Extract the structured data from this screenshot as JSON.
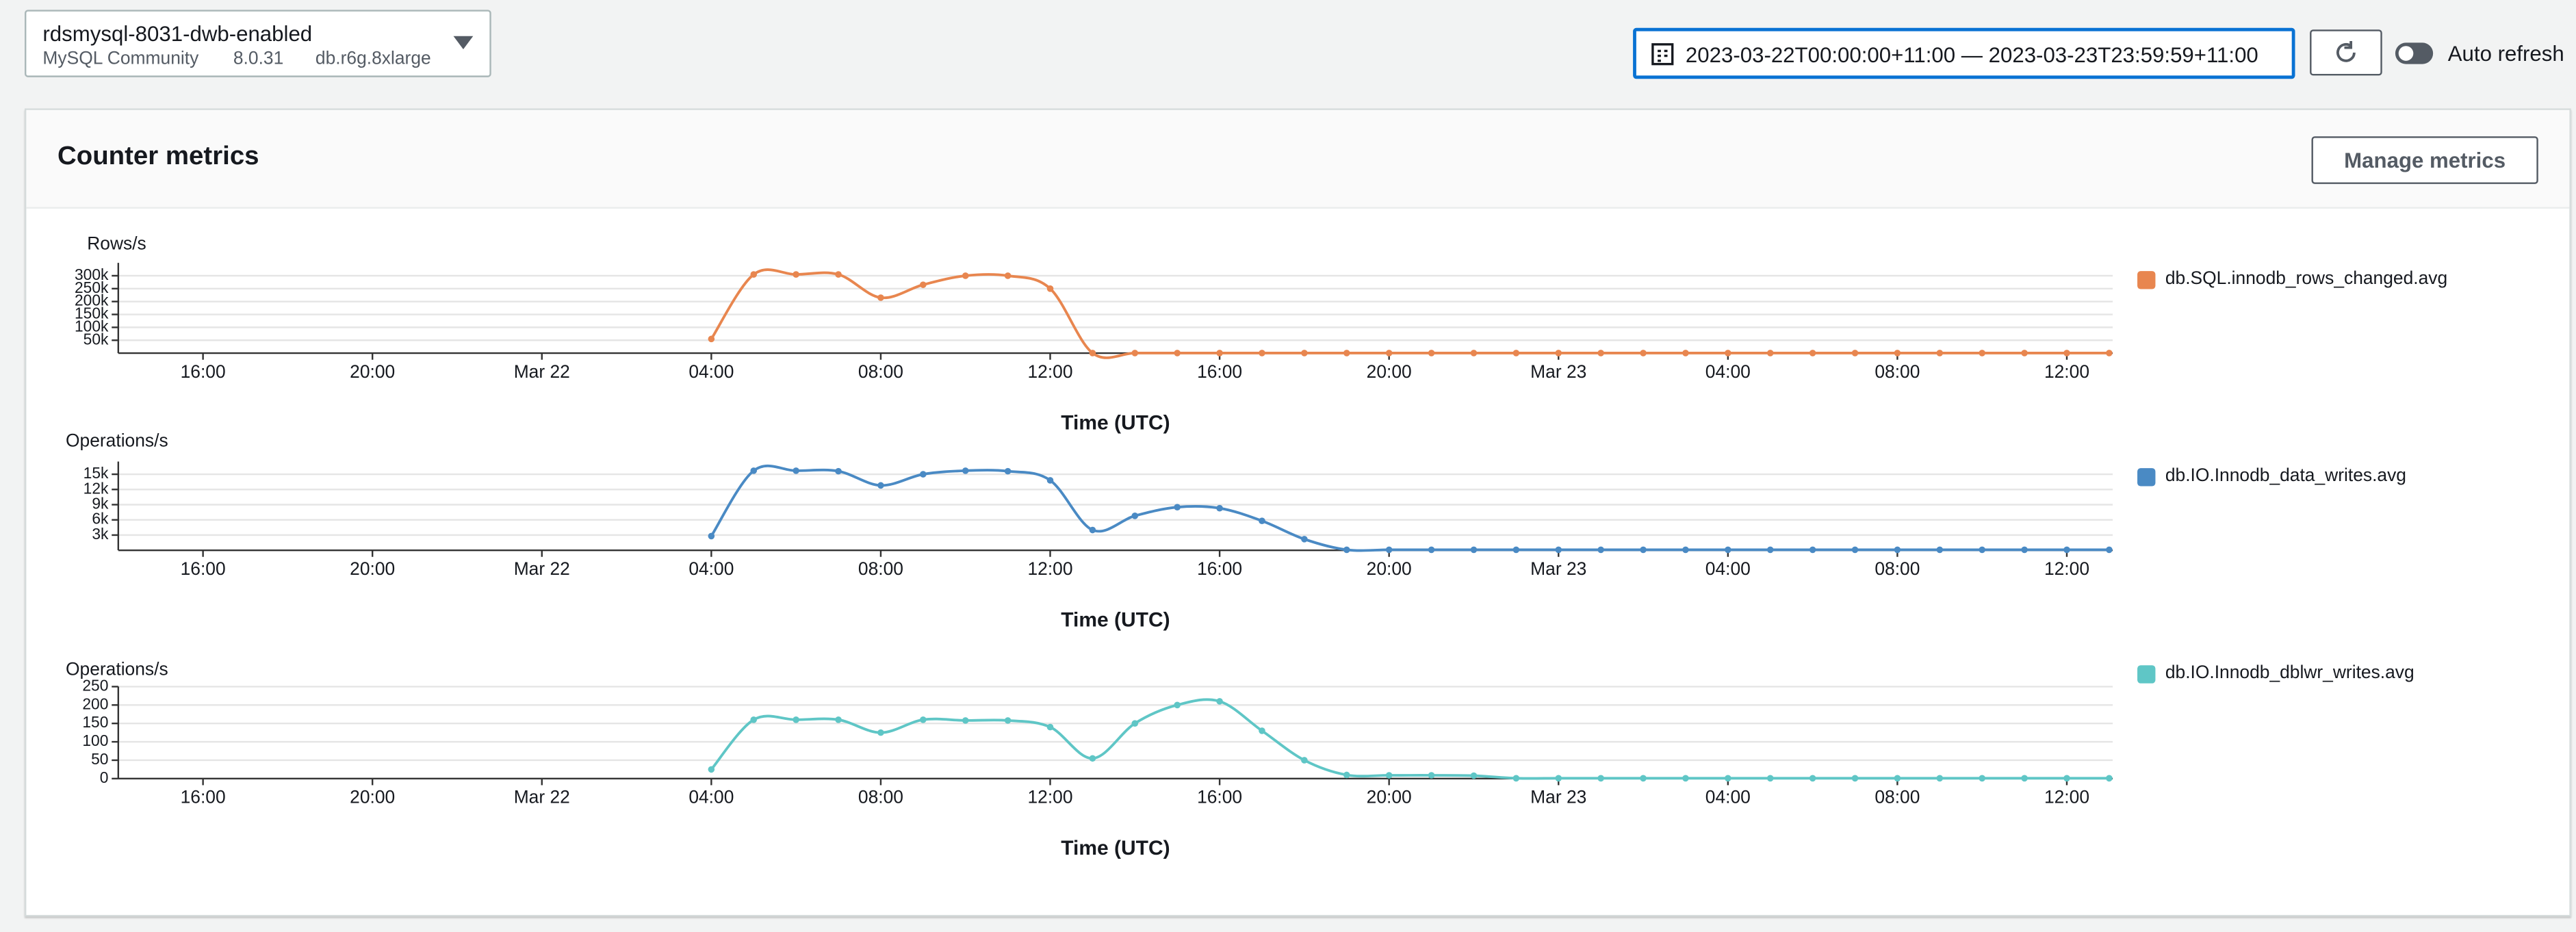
{
  "header": {
    "instance": "rdsmysql-8031-dwb-enabled",
    "engine": "MySQL Community",
    "version": "8.0.31",
    "instance_class": "db.r6g.8xlarge",
    "time_range": "2023-03-22T00:00:00+11:00 — 2023-03-23T23:59:59+11:00",
    "auto_refresh": "Auto refresh"
  },
  "panel": {
    "title": "Counter metrics",
    "button": "Manage metrics"
  },
  "chart_data": [
    {
      "type": "line",
      "y_label": "Rows/s",
      "x_label": "Time (UTC)",
      "x": [
        "Mar 22 04:00",
        "Mar 22 05:00",
        "Mar 22 06:00",
        "Mar 22 07:00",
        "Mar 22 08:00",
        "Mar 22 09:00",
        "Mar 22 10:00",
        "Mar 22 11:00",
        "Mar 22 12:00",
        "Mar 22 13:00",
        "Mar 22 14:00",
        "Mar 22 15:00",
        "Mar 22 16:00",
        "Mar 22 17:00",
        "Mar 22 18:00",
        "Mar 22 19:00",
        "Mar 22 20:00",
        "Mar 22 21:00",
        "Mar 22 22:00",
        "Mar 22 23:00",
        "Mar 23 00:00",
        "Mar 23 01:00",
        "Mar 23 02:00",
        "Mar 23 03:00",
        "Mar 23 04:00",
        "Mar 23 05:00",
        "Mar 23 06:00",
        "Mar 23 07:00",
        "Mar 23 08:00",
        "Mar 23 09:00",
        "Mar 23 10:00",
        "Mar 23 11:00",
        "Mar 23 12:00",
        "Mar 23 13:00"
      ],
      "series": [
        {
          "name": "db.SQL.innodb_rows_changed.avg",
          "color": "#e8864f",
          "values": [
            55000,
            305000,
            305000,
            305000,
            215000,
            265000,
            300000,
            300000,
            250000,
            500,
            500,
            500,
            500,
            500,
            500,
            500,
            500,
            500,
            500,
            500,
            500,
            500,
            500,
            500,
            500,
            500,
            500,
            500,
            500,
            500,
            500,
            500,
            500,
            500
          ]
        }
      ],
      "xlim": [
        "Mar 21 14:00",
        "Mar 23 13:05"
      ],
      "xticks": [
        {
          "value": "Mar 21 16:00",
          "label": "16:00"
        },
        {
          "value": "Mar 21 20:00",
          "label": "20:00"
        },
        {
          "value": "Mar 22 00:00",
          "label": "Mar 22"
        },
        {
          "value": "Mar 22 04:00",
          "label": "04:00"
        },
        {
          "value": "Mar 22 08:00",
          "label": "08:00"
        },
        {
          "value": "Mar 22 12:00",
          "label": "12:00"
        },
        {
          "value": "Mar 22 16:00",
          "label": "16:00"
        },
        {
          "value": "Mar 22 20:00",
          "label": "20:00"
        },
        {
          "value": "Mar 23 00:00",
          "label": "Mar 23"
        },
        {
          "value": "Mar 23 04:00",
          "label": "04:00"
        },
        {
          "value": "Mar 23 08:00",
          "label": "08:00"
        },
        {
          "value": "Mar 23 12:00",
          "label": "12:00"
        }
      ],
      "ylim": [
        0,
        350000
      ],
      "yticks": [
        {
          "value": 50000,
          "label": "50k"
        },
        {
          "value": 100000,
          "label": "100k"
        },
        {
          "value": 150000,
          "label": "150k"
        },
        {
          "value": 200000,
          "label": "200k"
        },
        {
          "value": 250000,
          "label": "250k"
        },
        {
          "value": 300000,
          "label": "300k"
        }
      ],
      "grid": true,
      "legend": "right"
    },
    {
      "type": "line",
      "y_label": "Operations/s",
      "x_label": "Time (UTC)",
      "x": [
        "Mar 22 04:00",
        "Mar 22 05:00",
        "Mar 22 06:00",
        "Mar 22 07:00",
        "Mar 22 08:00",
        "Mar 22 09:00",
        "Mar 22 10:00",
        "Mar 22 11:00",
        "Mar 22 12:00",
        "Mar 22 13:00",
        "Mar 22 14:00",
        "Mar 22 15:00",
        "Mar 22 16:00",
        "Mar 22 17:00",
        "Mar 22 18:00",
        "Mar 22 19:00",
        "Mar 22 20:00",
        "Mar 22 21:00",
        "Mar 22 22:00",
        "Mar 22 23:00",
        "Mar 23 00:00",
        "Mar 23 01:00",
        "Mar 23 02:00",
        "Mar 23 03:00",
        "Mar 23 04:00",
        "Mar 23 05:00",
        "Mar 23 06:00",
        "Mar 23 07:00",
        "Mar 23 08:00",
        "Mar 23 09:00",
        "Mar 23 10:00",
        "Mar 23 11:00",
        "Mar 23 12:00",
        "Mar 23 13:00"
      ],
      "series": [
        {
          "name": "db.IO.Innodb_data_writes.avg",
          "color": "#4a8ac4",
          "values": [
            2800,
            15700,
            15700,
            15600,
            12800,
            15000,
            15700,
            15600,
            13800,
            4000,
            6800,
            8500,
            8300,
            5800,
            2200,
            100,
            100,
            100,
            100,
            100,
            100,
            100,
            100,
            100,
            100,
            100,
            100,
            100,
            100,
            100,
            100,
            100,
            100,
            100
          ]
        }
      ],
      "xlim": [
        "Mar 21 14:00",
        "Mar 23 13:05"
      ],
      "xticks": [
        {
          "value": "Mar 21 16:00",
          "label": "16:00"
        },
        {
          "value": "Mar 21 20:00",
          "label": "20:00"
        },
        {
          "value": "Mar 22 00:00",
          "label": "Mar 22"
        },
        {
          "value": "Mar 22 04:00",
          "label": "04:00"
        },
        {
          "value": "Mar 22 08:00",
          "label": "08:00"
        },
        {
          "value": "Mar 22 12:00",
          "label": "12:00"
        },
        {
          "value": "Mar 22 16:00",
          "label": "16:00"
        },
        {
          "value": "Mar 22 20:00",
          "label": "20:00"
        },
        {
          "value": "Mar 23 00:00",
          "label": "Mar 23"
        },
        {
          "value": "Mar 23 04:00",
          "label": "04:00"
        },
        {
          "value": "Mar 23 08:00",
          "label": "08:00"
        },
        {
          "value": "Mar 23 12:00",
          "label": "12:00"
        }
      ],
      "ylim": [
        0,
        17500
      ],
      "yticks": [
        {
          "value": 3000,
          "label": "3k"
        },
        {
          "value": 6000,
          "label": "6k"
        },
        {
          "value": 9000,
          "label": "9k"
        },
        {
          "value": 12000,
          "label": "12k"
        },
        {
          "value": 15000,
          "label": "15k"
        }
      ],
      "grid": true,
      "legend": "right"
    },
    {
      "type": "line",
      "y_label": "Operations/s",
      "x_label": "Time (UTC)",
      "x": [
        "Mar 22 04:00",
        "Mar 22 05:00",
        "Mar 22 06:00",
        "Mar 22 07:00",
        "Mar 22 08:00",
        "Mar 22 09:00",
        "Mar 22 10:00",
        "Mar 22 11:00",
        "Mar 22 12:00",
        "Mar 22 13:00",
        "Mar 22 14:00",
        "Mar 22 15:00",
        "Mar 22 16:00",
        "Mar 22 17:00",
        "Mar 22 18:00",
        "Mar 22 19:00",
        "Mar 22 20:00",
        "Mar 22 21:00",
        "Mar 22 22:00",
        "Mar 22 23:00",
        "Mar 23 00:00",
        "Mar 23 01:00",
        "Mar 23 02:00",
        "Mar 23 03:00",
        "Mar 23 04:00",
        "Mar 23 05:00",
        "Mar 23 06:00",
        "Mar 23 07:00",
        "Mar 23 08:00",
        "Mar 23 09:00",
        "Mar 23 10:00",
        "Mar 23 11:00",
        "Mar 23 12:00",
        "Mar 23 13:00"
      ],
      "series": [
        {
          "name": "db.IO.Innodb_dblwr_writes.avg",
          "color": "#5fc6c6",
          "values": [
            25,
            160,
            160,
            160,
            125,
            160,
            158,
            158,
            140,
            55,
            150,
            200,
            210,
            130,
            50,
            10,
            9,
            9,
            8,
            1,
            1,
            1,
            1,
            1,
            1,
            1,
            1,
            1,
            1,
            1,
            1,
            1,
            1,
            1
          ]
        }
      ],
      "xlim": [
        "Mar 21 14:00",
        "Mar 23 13:05"
      ],
      "xticks": [
        {
          "value": "Mar 21 16:00",
          "label": "16:00"
        },
        {
          "value": "Mar 21 20:00",
          "label": "20:00"
        },
        {
          "value": "Mar 22 00:00",
          "label": "Mar 22"
        },
        {
          "value": "Mar 22 04:00",
          "label": "04:00"
        },
        {
          "value": "Mar 22 08:00",
          "label": "08:00"
        },
        {
          "value": "Mar 22 12:00",
          "label": "12:00"
        },
        {
          "value": "Mar 22 16:00",
          "label": "16:00"
        },
        {
          "value": "Mar 22 20:00",
          "label": "20:00"
        },
        {
          "value": "Mar 23 00:00",
          "label": "Mar 23"
        },
        {
          "value": "Mar 23 04:00",
          "label": "04:00"
        },
        {
          "value": "Mar 23 08:00",
          "label": "08:00"
        },
        {
          "value": "Mar 23 12:00",
          "label": "12:00"
        }
      ],
      "ylim": [
        0,
        250
      ],
      "yticks": [
        0,
        50,
        100,
        150,
        200,
        250
      ],
      "grid": true,
      "legend": "right"
    }
  ]
}
